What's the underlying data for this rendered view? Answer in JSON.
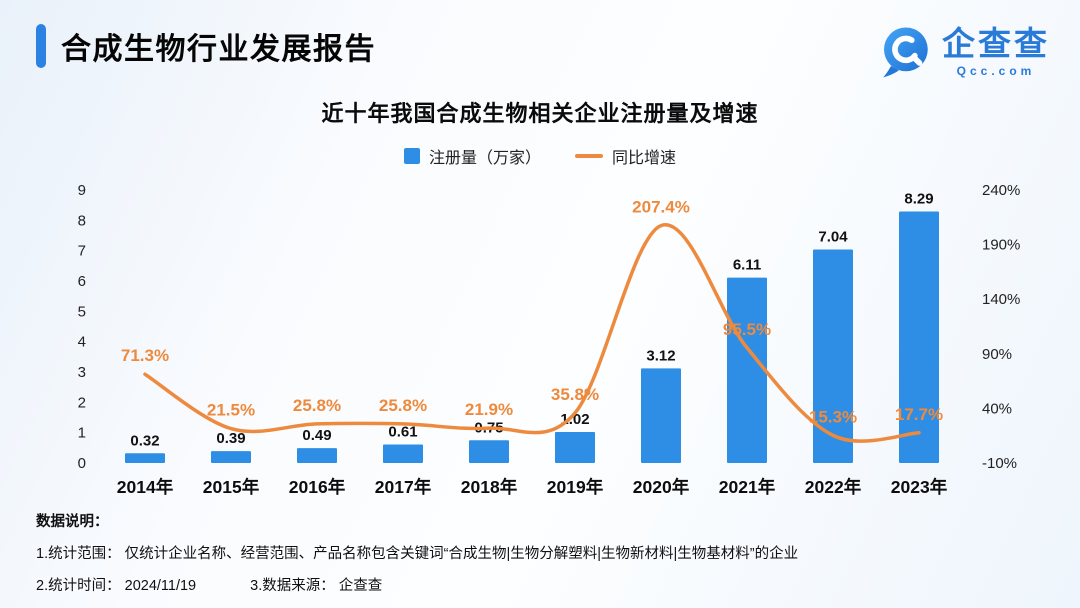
{
  "header": {
    "title": "合成生物行业发展报告",
    "accent_color": "#2b82e3",
    "logo": {
      "brand": "企查查",
      "domain": "Qcc.com"
    }
  },
  "chart_data": {
    "type": "bar+line",
    "title": "近十年我国合成生物相关企业注册量及增速",
    "categories": [
      "2014年",
      "2015年",
      "2016年",
      "2017年",
      "2018年",
      "2019年",
      "2020年",
      "2021年",
      "2022年",
      "2023年"
    ],
    "series": [
      {
        "name": "注册量（万家）",
        "type": "bar",
        "axis": "left",
        "color": "#2e8ee5",
        "values": [
          0.32,
          0.39,
          0.49,
          0.61,
          0.75,
          1.02,
          3.12,
          6.11,
          7.04,
          8.29
        ]
      },
      {
        "name": "同比增速",
        "type": "line",
        "axis": "right",
        "color": "#ee8a3d",
        "values": [
          71.3,
          21.5,
          25.8,
          25.8,
          21.9,
          35.8,
          207.4,
          95.5,
          15.3,
          17.7
        ],
        "value_suffix": "%"
      }
    ],
    "left_axis": {
      "min": 0,
      "max": 9,
      "ticks": [
        0,
        1,
        2,
        3,
        4,
        5,
        6,
        7,
        8,
        9
      ],
      "suffix": ""
    },
    "right_axis": {
      "min": -10,
      "max": 240,
      "ticks": [
        -10,
        40,
        90,
        140,
        190,
        240
      ],
      "suffix": "%"
    },
    "legend_position": "top",
    "grid": false
  },
  "footer": {
    "heading": "数据说明：",
    "line1": "1.统计范围： 仅统计企业名称、经营范围、产品名称包含关键词“合成生物|生物分解塑料|生物新材料|生物基材料”的企业",
    "line2_time_label": "2.统计时间：",
    "line2_time_value": "2024/11/19",
    "line2_source_label": "3.数据来源：",
    "line2_source_value": "企查查"
  }
}
